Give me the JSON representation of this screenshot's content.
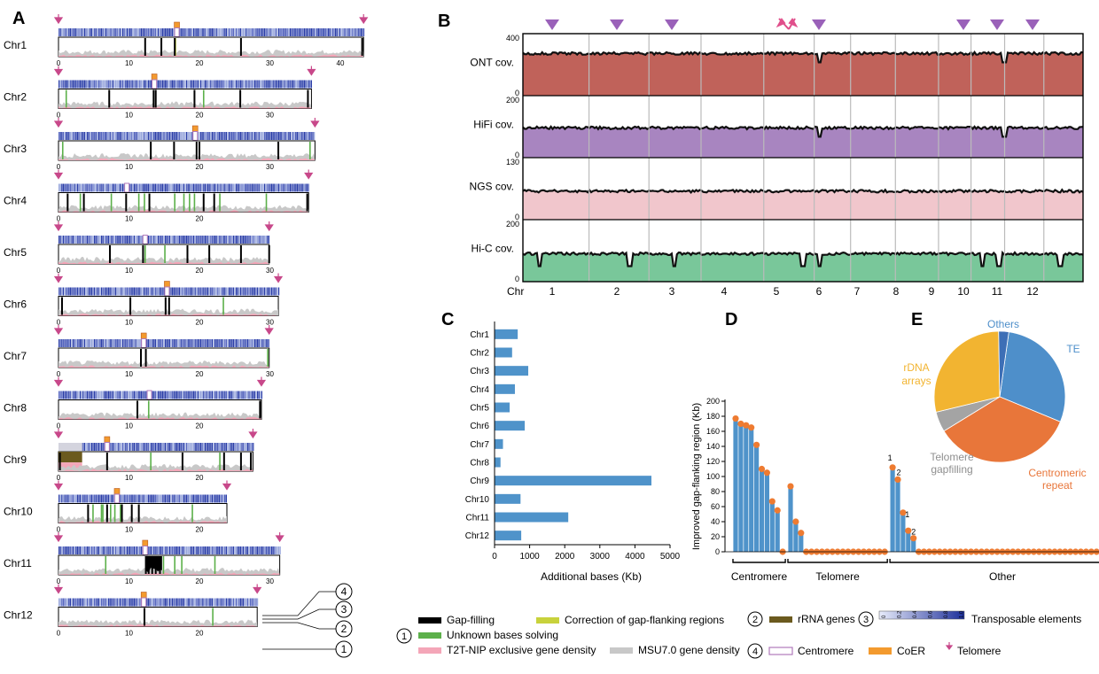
{
  "panels": {
    "a": "A",
    "b": "B",
    "c": "C",
    "d": "D",
    "e": "E"
  },
  "colors": {
    "te": "#2c3fa8",
    "te_light": "#9aa8dc",
    "gap_fill": "#000000",
    "gap_correction": "#c8d23c",
    "unknown": "#5cb04a",
    "t2t_density": "#f4a6b8",
    "msu_density": "#c8c8c8",
    "rrna": "#6b5a1e",
    "centromere": "#b07abb",
    "coer": "#f39a2e",
    "telomere": "#c8488a",
    "ont": "#c0625a",
    "hifi": "#a885c0",
    "ngs": "#f1c6cc",
    "hic": "#79c79a",
    "bar_blue": "#4f93ca",
    "dot_orange": "#ee7b31",
    "pie_te": "#4e8fca",
    "pie_centromeric": "#e8763a",
    "pie_telomere": "#a4a4a4",
    "pie_rdna": "#f2b431",
    "pie_others": "#3d6fb6"
  },
  "panel_a": {
    "chromosomes": [
      {
        "label": "Chr1",
        "length": 43.3,
        "ticks": [
          "0",
          "10",
          "20",
          "30",
          "40"
        ],
        "centromere": 16.8,
        "coer": true,
        "black": [
          12.3,
          14.6,
          16.5,
          25.9,
          43.1
        ],
        "green": [],
        "yellow": [
          16.6
        ]
      },
      {
        "label": "Chr2",
        "length": 35.9,
        "ticks": [
          "0",
          "10",
          "20",
          "30"
        ],
        "centromere": 13.6,
        "coer": true,
        "black": [
          7.2,
          13.5,
          13.8,
          19.3,
          25.8,
          35.4
        ],
        "green": [
          1.1,
          20.6
        ],
        "yellow": []
      },
      {
        "label": "Chr3",
        "length": 36.4,
        "ticks": [
          "0",
          "10",
          "20",
          "30"
        ],
        "centromere": 19.4,
        "coer": true,
        "black": [
          13.1,
          16.4,
          19.6,
          20.0,
          31.2
        ],
        "green": [
          0.6,
          35.7
        ],
        "yellow": []
      },
      {
        "label": "Chr4",
        "length": 35.5,
        "ticks": [
          "0",
          "10",
          "20"
        ],
        "centromere": 9.7,
        "coer": false,
        "black": [
          1.3,
          3.6,
          9.6,
          12.9,
          20.6,
          22.1,
          35.3
        ],
        "green": [
          3.1,
          7.5,
          11.4,
          12.2,
          16.5,
          17.8,
          18.6,
          19.3,
          22.9,
          29.5
        ],
        "yellow": []
      },
      {
        "label": "Chr5",
        "length": 29.9,
        "ticks": [
          "0",
          "10",
          "20",
          "30"
        ],
        "centromere": 12.3,
        "coer": false,
        "black": [
          7.3,
          12.0,
          18.3,
          21.4,
          25.9,
          29.9
        ],
        "green": [
          12.3,
          15.1
        ],
        "yellow": []
      },
      {
        "label": "Chr6",
        "length": 31.2,
        "ticks": [
          "0",
          "10",
          "20",
          "30"
        ],
        "centromere": 15.4,
        "coer": true,
        "black": [
          0.5,
          10.2,
          15.2,
          15.7
        ],
        "green": [
          23.4
        ],
        "yellow": []
      },
      {
        "label": "Chr7",
        "length": 29.9,
        "ticks": [
          "0",
          "10",
          "20",
          "30"
        ],
        "centromere": 12.1,
        "coer": true,
        "black": [
          11.7,
          12.4
        ],
        "green": [
          29.7
        ],
        "yellow": []
      },
      {
        "label": "Chr8",
        "length": 28.8,
        "ticks": [
          "0",
          "10",
          "20"
        ],
        "centromere": 12.9,
        "coer": false,
        "black": [
          11.2,
          28.6
        ],
        "green": [
          12.8
        ],
        "yellow": []
      },
      {
        "label": "Chr9",
        "length": 27.6,
        "ticks": [
          "0",
          "10",
          "20"
        ],
        "centromere": 6.9,
        "coer": true,
        "black": [
          0.2,
          6.9,
          17.6,
          23.5,
          25.9,
          27.3
        ],
        "green": [
          13.1,
          22.9
        ],
        "yellow": []
      },
      {
        "label": "Chr10",
        "length": 23.9,
        "ticks": [
          "0",
          "10",
          "20"
        ],
        "centromere": 8.3,
        "coer": true,
        "black": [
          4.2,
          6.9,
          9.0,
          10.4,
          11.4
        ],
        "green": [
          4.9,
          6.1,
          6.3,
          7.4,
          8.0,
          8.8,
          19.0
        ],
        "yellow": []
      },
      {
        "label": "Chr11",
        "length": 31.4,
        "ticks": [
          "0",
          "10",
          "20",
          "30"
        ],
        "centromere": 12.3,
        "coer": true,
        "black": [
          12.4,
          12.8,
          13.3,
          13.8,
          14.4
        ],
        "green": [
          6.7,
          14.9,
          16.5,
          17.5,
          22.2
        ],
        "yellow": []
      },
      {
        "label": "Chr12",
        "length": 28.2,
        "ticks": [
          "0",
          "10",
          "20"
        ],
        "centromere": 12.1,
        "coer": true,
        "black": [
          12.2
        ],
        "green": [
          21.9
        ],
        "yellow": []
      }
    ],
    "callouts": [
      "4",
      "3",
      "2",
      "1"
    ]
  },
  "panel_b": {
    "tracks": [
      {
        "label": "ONT cov.",
        "max": "400",
        "min": "0",
        "level": 0.68
      },
      {
        "label": "HiFi cov.",
        "max": "200",
        "min": "0",
        "level": 0.48
      },
      {
        "label": "NGS cov.",
        "max": "130",
        "min": "0",
        "level": 0.46
      },
      {
        "label": "Hi-C cov.",
        "max": "200",
        "min": "0",
        "level": 0.45
      }
    ],
    "axis_title": "Chr",
    "chr_labels": [
      "1",
      "2",
      "3",
      "4",
      "5",
      "6",
      "7",
      "8",
      "9",
      "10",
      "11",
      "12"
    ],
    "centromere_markers": [
      "1",
      "2",
      "3",
      "6",
      "10",
      "11",
      "12"
    ],
    "double_marker": "5"
  },
  "chart_data": [
    {
      "type": "bar",
      "orientation": "horizontal",
      "categories": [
        "Chr1",
        "Chr2",
        "Chr3",
        "Chr4",
        "Chr5",
        "Chr6",
        "Chr7",
        "Chr8",
        "Chr9",
        "Chr10",
        "Chr11",
        "Chr12"
      ],
      "values": [
        660,
        500,
        960,
        580,
        430,
        860,
        240,
        170,
        4470,
        740,
        2100,
        760
      ],
      "xlabel": "Additional bases (Kb)",
      "xlim": [
        0,
        5000
      ],
      "ticks": [
        "0",
        "1000",
        "2000",
        "3000",
        "4000",
        "5000"
      ]
    },
    {
      "type": "bar",
      "subtype": "lollipop",
      "ylabel": "Improved gap-flanking region (Kb)",
      "ylim": [
        0,
        200
      ],
      "ticks": [
        "0",
        "20",
        "40",
        "60",
        "80",
        "100",
        "120",
        "140",
        "160",
        "180",
        "200"
      ],
      "groups": [
        {
          "name": "Centromere",
          "values": [
            177,
            170,
            168,
            165,
            142,
            110,
            105,
            67,
            55,
            0
          ]
        },
        {
          "name": "Telomere",
          "values": [
            87,
            40,
            25,
            0,
            0,
            0,
            0,
            0,
            0,
            0,
            0,
            0,
            0,
            0,
            0,
            0,
            0,
            0,
            0
          ]
        },
        {
          "name": "Other",
          "values": [
            112,
            96,
            52,
            28,
            18,
            0,
            0,
            0,
            0,
            0,
            0,
            0,
            0,
            0,
            0,
            0,
            0,
            0,
            0,
            0,
            0,
            0,
            0,
            0,
            0,
            0,
            0,
            0,
            0,
            0,
            0,
            0,
            0,
            0,
            0,
            0,
            0,
            0,
            0,
            0,
            0,
            0,
            0
          ]
        }
      ],
      "annotations": [
        "1",
        "2",
        "1",
        "2"
      ]
    },
    {
      "type": "pie",
      "slices": [
        {
          "label": "TE",
          "value": 29
        },
        {
          "label": "Centromeric repeat",
          "value": 35
        },
        {
          "label": "Telomere gapfilling",
          "value": 5
        },
        {
          "label": "rDNA arrays",
          "value": 28.5
        },
        {
          "label": "Others",
          "value": 2.5
        }
      ],
      "label_lines": {
        "rdna": [
          "rDNA",
          "arrays"
        ],
        "telomere": [
          "Telomere",
          "gapfilling"
        ],
        "centromeric": [
          "Centromeric",
          "repeat"
        ]
      }
    }
  ],
  "legend": {
    "num1": "1",
    "num2": "2",
    "num3": "3",
    "num4": "4",
    "gap_filling": "Gap-filling",
    "correction": "Correction of gap-flanking regions",
    "unknown": "Unknown bases solving",
    "t2t": "T2T-NIP exclusive gene density",
    "msu": "MSU7.0 gene density",
    "rrna": "rRNA genes",
    "te": "Transposable elements",
    "te_scale": [
      "0",
      "0.2",
      "0.4",
      "0.6",
      "0.8",
      "1.0"
    ],
    "centromere": "Centromere",
    "coer": "CoER",
    "telomere": "Telomere"
  }
}
